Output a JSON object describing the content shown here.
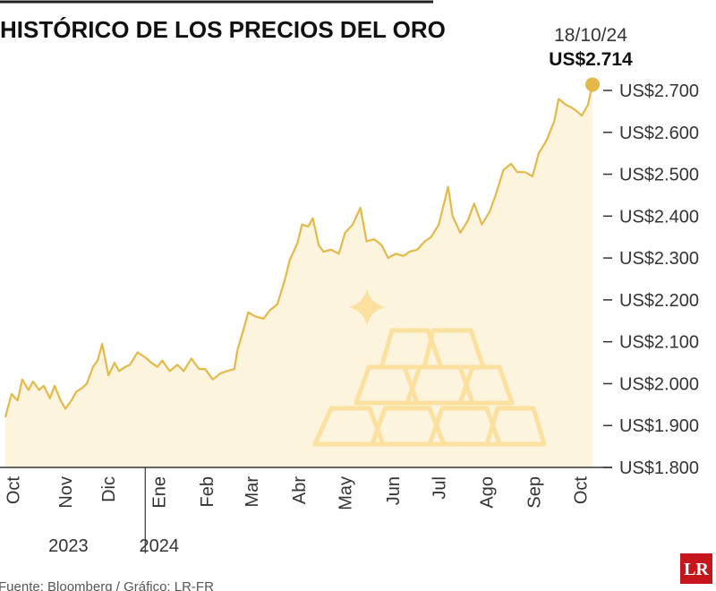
{
  "header": {
    "title": "HISTÓRICO DE LOS PRECIOS DEL ORO"
  },
  "annotation": {
    "date": "18/10/24",
    "value": "US$2.714"
  },
  "source": "Fuente: Bloomberg / Gráfico: LR-FR",
  "logo": {
    "text": "LR"
  },
  "colors": {
    "line": "#e4b94a",
    "area": "#fbe7b6",
    "bars": "#fbe0a0",
    "logo": "#c4161c",
    "axis": "#333333"
  },
  "icons": [
    "gold-bars-icon",
    "sparkle-icon"
  ],
  "chart_data": {
    "type": "area",
    "title": "HISTÓRICO DE LOS PRECIOS DEL ORO",
    "ylim": [
      1800,
      2750
    ],
    "yticks": [
      1800,
      1900,
      2000,
      2100,
      2200,
      2300,
      2400,
      2500,
      2600,
      2700
    ],
    "ytick_labels": [
      "US$1.800",
      "US$1.900",
      "US$2.000",
      "US$2.100",
      "US$2.200",
      "US$2.300",
      "US$2.400",
      "US$2.500",
      "US$2.600",
      "US$2.700"
    ],
    "x_range": [
      "2023-10-02",
      "2024-10-18"
    ],
    "months": [
      {
        "label": "Oct",
        "date": "2023-10-07"
      },
      {
        "label": "Nov",
        "date": "2023-11-10"
      },
      {
        "label": "Dic",
        "date": "2023-12-08"
      },
      {
        "label": "Ene",
        "date": "2024-01-10"
      },
      {
        "label": "Feb",
        "date": "2024-02-10"
      },
      {
        "label": "Mar",
        "date": "2024-03-10"
      },
      {
        "label": "Abr",
        "date": "2024-04-10"
      },
      {
        "label": "May",
        "date": "2024-05-10"
      },
      {
        "label": "Jun",
        "date": "2024-06-10"
      },
      {
        "label": "Jul",
        "date": "2024-07-10"
      },
      {
        "label": "Ago",
        "date": "2024-08-10"
      },
      {
        "label": "Sep",
        "date": "2024-09-10"
      },
      {
        "label": "Oct",
        "date": "2024-10-10"
      }
    ],
    "years": [
      {
        "label": "2023",
        "date": "2023-11-12"
      },
      {
        "label": "2024",
        "date": "2024-01-10"
      }
    ],
    "year_divider": "2024-01-01",
    "series": [
      {
        "x": [
          "2023-10-02",
          "2023-10-06",
          "2023-10-10",
          "2023-10-13",
          "2023-10-17",
          "2023-10-20",
          "2023-10-24",
          "2023-10-27",
          "2023-10-31",
          "2023-11-03",
          "2023-11-07",
          "2023-11-10",
          "2023-11-14",
          "2023-11-17",
          "2023-11-21",
          "2023-11-24",
          "2023-11-28",
          "2023-12-01",
          "2023-12-04",
          "2023-12-08",
          "2023-12-12",
          "2023-12-15",
          "2023-12-19",
          "2023-12-22",
          "2023-12-27",
          "2024-01-02",
          "2024-01-05",
          "2024-01-09",
          "2024-01-12",
          "2024-01-17",
          "2024-01-22",
          "2024-01-26",
          "2024-01-31",
          "2024-02-05",
          "2024-02-09",
          "2024-02-14",
          "2024-02-19",
          "2024-02-23",
          "2024-02-28",
          "2024-03-01",
          "2024-03-05",
          "2024-03-08",
          "2024-03-13",
          "2024-03-18",
          "2024-03-22",
          "2024-03-27",
          "2024-04-01",
          "2024-04-04",
          "2024-04-09",
          "2024-04-12",
          "2024-04-16",
          "2024-04-19",
          "2024-04-23",
          "2024-04-26",
          "2024-05-01",
          "2024-05-06",
          "2024-05-10",
          "2024-05-15",
          "2024-05-20",
          "2024-05-24",
          "2024-05-29",
          "2024-06-03",
          "2024-06-07",
          "2024-06-12",
          "2024-06-17",
          "2024-06-21",
          "2024-06-26",
          "2024-07-01",
          "2024-07-05",
          "2024-07-10",
          "2024-07-16",
          "2024-07-19",
          "2024-07-24",
          "2024-07-29",
          "2024-08-02",
          "2024-08-07",
          "2024-08-12",
          "2024-08-16",
          "2024-08-21",
          "2024-08-26",
          "2024-08-30",
          "2024-09-04",
          "2024-09-09",
          "2024-09-13",
          "2024-09-18",
          "2024-09-23",
          "2024-09-26",
          "2024-10-01",
          "2024-10-04",
          "2024-10-08",
          "2024-10-11",
          "2024-10-15",
          "2024-10-18"
        ],
        "y": [
          1920,
          1975,
          1960,
          2010,
          1985,
          2005,
          1985,
          1995,
          1965,
          1995,
          1960,
          1940,
          1960,
          1980,
          1990,
          2000,
          2040,
          2055,
          2095,
          2020,
          2050,
          2030,
          2040,
          2045,
          2075,
          2060,
          2050,
          2040,
          2055,
          2030,
          2045,
          2030,
          2060,
          2035,
          2035,
          2010,
          2025,
          2030,
          2035,
          2080,
          2130,
          2170,
          2160,
          2155,
          2175,
          2190,
          2250,
          2295,
          2335,
          2380,
          2375,
          2395,
          2330,
          2315,
          2320,
          2310,
          2360,
          2380,
          2420,
          2340,
          2345,
          2330,
          2300,
          2310,
          2305,
          2315,
          2320,
          2340,
          2350,
          2380,
          2470,
          2400,
          2360,
          2390,
          2430,
          2380,
          2410,
          2450,
          2510,
          2525,
          2505,
          2505,
          2495,
          2550,
          2580,
          2625,
          2680,
          2665,
          2660,
          2650,
          2640,
          2665,
          2714
        ]
      }
    ]
  }
}
